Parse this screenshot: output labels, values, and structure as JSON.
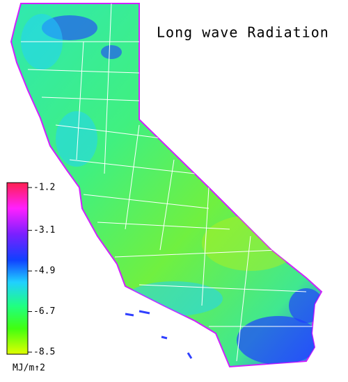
{
  "title": "Long wave Radiation",
  "colorbar": {
    "lim": [
      -8.5,
      -1.2
    ],
    "ticks": [
      -1.2,
      -3.1,
      -4.9,
      -6.7,
      -8.5
    ],
    "label": "MJ/m↑2"
  }
}
